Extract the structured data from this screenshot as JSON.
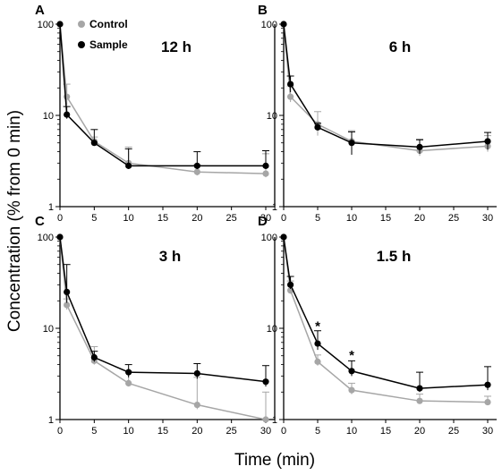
{
  "figure": {
    "ylabel": "Concentration (% from 0 min)",
    "xlabel": "Time (min)",
    "legend": {
      "items": [
        {
          "label": "Control",
          "color": "#a6a6a6"
        },
        {
          "label": "Sample",
          "color": "#000000"
        }
      ],
      "placement": "top-left of panel A"
    }
  },
  "chart_data": [
    {
      "type": "line",
      "panel": "A",
      "title": "12 h",
      "x": [
        0,
        1,
        5,
        10,
        20,
        30
      ],
      "xticks": [
        0,
        5,
        10,
        15,
        20,
        25,
        30
      ],
      "yscale": "log",
      "ylim": [
        1,
        100
      ],
      "yticks": [
        1,
        10,
        100
      ],
      "series": [
        {
          "name": "Control",
          "color": "#a6a6a6",
          "values": [
            100,
            16,
            5.2,
            3.0,
            2.4,
            2.3
          ],
          "err_upper": [
            100,
            22,
            5.8,
            4.5,
            2.9,
            3.8
          ],
          "err_lower": [
            100,
            13,
            4.8,
            2.6,
            2.2,
            2.1
          ]
        },
        {
          "name": "Sample",
          "color": "#000000",
          "values": [
            100,
            10.2,
            5.0,
            2.8,
            2.8,
            2.8
          ],
          "err_upper": [
            100,
            12.5,
            7.0,
            4.3,
            4.0,
            4.1
          ],
          "err_lower": [
            100,
            9.2,
            4.7,
            2.6,
            2.6,
            2.6
          ]
        }
      ],
      "annotations": []
    },
    {
      "type": "line",
      "panel": "B",
      "title": "6 h",
      "x": [
        0,
        1,
        5,
        10,
        20,
        30
      ],
      "xticks": [
        0,
        5,
        10,
        15,
        20,
        25,
        30
      ],
      "yscale": "log",
      "ylim": [
        1,
        100
      ],
      "yticks": [
        1,
        10,
        100
      ],
      "series": [
        {
          "name": "Control",
          "color": "#a6a6a6",
          "values": [
            100,
            16,
            8.0,
            5.2,
            4.1,
            4.6
          ],
          "err_upper": [
            100,
            21,
            11.0,
            6.8,
            5.5,
            6.0
          ],
          "err_lower": [
            100,
            14,
            6.0,
            4.0,
            3.6,
            4.0
          ]
        },
        {
          "name": "Sample",
          "color": "#000000",
          "values": [
            100,
            22,
            7.4,
            5.0,
            4.5,
            5.2
          ],
          "err_upper": [
            100,
            27,
            8.2,
            6.6,
            5.4,
            6.5
          ],
          "err_lower": [
            100,
            18,
            6.9,
            3.7,
            3.8,
            4.2
          ]
        }
      ],
      "annotations": []
    },
    {
      "type": "line",
      "panel": "C",
      "title": "3 h",
      "x": [
        0,
        1,
        5,
        10,
        20,
        30
      ],
      "xticks": [
        0,
        5,
        10,
        15,
        20,
        25,
        30
      ],
      "yscale": "log",
      "ylim": [
        1,
        100
      ],
      "yticks": [
        1,
        10,
        100
      ],
      "series": [
        {
          "name": "Control",
          "color": "#a6a6a6",
          "values": [
            100,
            18,
            4.4,
            2.5,
            1.45,
            1.0
          ],
          "err_upper": [
            100,
            21,
            6.3,
            3.4,
            2.9,
            2.0
          ],
          "err_lower": [
            100,
            16,
            4.0,
            2.3,
            1.3,
            1.0
          ]
        },
        {
          "name": "Sample",
          "color": "#000000",
          "values": [
            100,
            25,
            4.8,
            3.3,
            3.2,
            2.6
          ],
          "err_upper": [
            100,
            50,
            5.6,
            4.0,
            4.1,
            3.9
          ],
          "err_lower": [
            100,
            19,
            4.3,
            2.9,
            2.8,
            2.3
          ]
        }
      ],
      "annotations": []
    },
    {
      "type": "line",
      "panel": "D",
      "title": "1.5 h",
      "x": [
        0,
        1,
        5,
        10,
        20,
        30
      ],
      "xticks": [
        0,
        5,
        10,
        15,
        20,
        25,
        30
      ],
      "yscale": "log",
      "ylim": [
        1,
        100
      ],
      "yticks": [
        1,
        10,
        100
      ],
      "series": [
        {
          "name": "Control",
          "color": "#a6a6a6",
          "values": [
            100,
            26,
            4.3,
            2.1,
            1.6,
            1.55
          ],
          "err_upper": [
            100,
            33,
            5.1,
            2.5,
            1.9,
            1.8
          ],
          "err_lower": [
            100,
            24,
            3.9,
            1.9,
            1.5,
            1.45
          ]
        },
        {
          "name": "Sample",
          "color": "#000000",
          "values": [
            100,
            30,
            6.8,
            3.4,
            2.2,
            2.4
          ],
          "err_upper": [
            100,
            37,
            9.4,
            4.4,
            3.3,
            3.8
          ],
          "err_lower": [
            100,
            27,
            5.8,
            3.0,
            2.0,
            2.1
          ]
        }
      ],
      "annotations": [
        {
          "text": "*",
          "x": 5,
          "y": 10.8
        },
        {
          "text": "*",
          "x": 10,
          "y": 5.2
        }
      ]
    }
  ]
}
